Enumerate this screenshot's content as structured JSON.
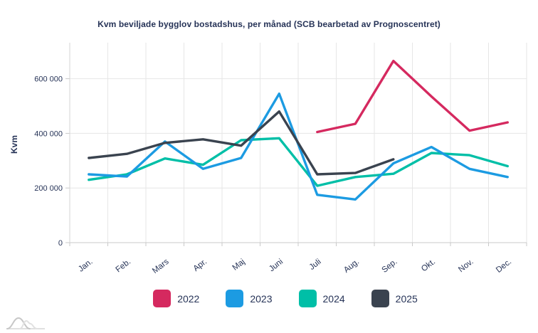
{
  "chart_data": {
    "type": "line",
    "title": "Kvm beviljade bygglov bostadshus, per månad (SCB bearbetad av Prognoscentret)",
    "xlabel": "",
    "ylabel": "Kvm",
    "categories": [
      "Jan.",
      "Feb.",
      "Mars",
      "Apr.",
      "Maj",
      "Juni",
      "Juli",
      "Aug.",
      "Sep.",
      "Okt.",
      "Nov.",
      "Dec."
    ],
    "y_ticks": [
      {
        "value": 0,
        "label": "0"
      },
      {
        "value": 200000,
        "label": "200 000"
      },
      {
        "value": 400000,
        "label": "400 000"
      },
      {
        "value": 600000,
        "label": "600 000"
      }
    ],
    "ylim": [
      0,
      730000
    ],
    "grid": true,
    "legend_position": "bottom",
    "series": [
      {
        "name": "2022",
        "color": "#d5295f",
        "values": [
          null,
          null,
          null,
          null,
          null,
          null,
          405000,
          435000,
          665000,
          535000,
          410000,
          440000
        ]
      },
      {
        "name": "2023",
        "color": "#1c9be2",
        "values": [
          250000,
          242000,
          370000,
          270000,
          310000,
          545000,
          175000,
          158000,
          290000,
          350000,
          270000,
          240000
        ]
      },
      {
        "name": "2024",
        "color": "#00bfa7",
        "values": [
          230000,
          250000,
          308000,
          285000,
          375000,
          382000,
          208000,
          240000,
          252000,
          328000,
          320000,
          280000
        ]
      },
      {
        "name": "2025",
        "color": "#3a434f",
        "values": [
          310000,
          325000,
          365000,
          378000,
          355000,
          480000,
          250000,
          255000,
          305000,
          null,
          null,
          null
        ]
      }
    ]
  },
  "logo": {
    "label": "prognoscentret-logo"
  },
  "colors": {
    "text": "#263357",
    "gridline": "#e6e6e6",
    "axis": "#c9c9c9",
    "background": "#ffffff"
  }
}
